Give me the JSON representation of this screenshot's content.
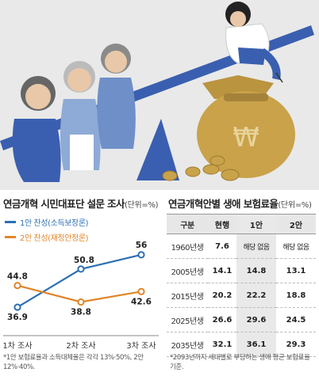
{
  "left_title": "연금개혁 시민대표단 설문 조사",
  "left_unit": "(단위=%)",
  "right_title": "연금개혁안별 생애 보험료율",
  "right_unit": "(단위=%)",
  "legend": [
    "1안 찬성(소득보장론)",
    "2안 찬성(재정안정론)"
  ],
  "colors": {
    "series1": "#2d6fb3",
    "series2": "#e0852a",
    "slope": "#3a5fb0",
    "gold": "#c9a24a",
    "bg": "#e9e9e9"
  },
  "chart_data": {
    "type": "line",
    "x": [
      "1차 조사",
      "2차 조사",
      "3차 조사"
    ],
    "series": [
      {
        "name": "1안 찬성(소득보장론)",
        "values": [
          36.9,
          50.8,
          56
        ]
      },
      {
        "name": "2안 찬성(재정안정론)",
        "values": [
          44.8,
          38.8,
          42.6
        ]
      }
    ],
    "value_labels": [
      [
        "36.9",
        "50.8",
        "56"
      ],
      [
        "44.8",
        "38.8",
        "42.6"
      ]
    ],
    "ylim": [
      30,
      60
    ],
    "grid": false,
    "legend_position": "top-left"
  },
  "table": {
    "headers": [
      "구분",
      "현행",
      "1안",
      "2안"
    ],
    "rows": [
      [
        "1960년생",
        "7.6",
        "해당 없음",
        "해당 없음"
      ],
      [
        "2005년생",
        "14.1",
        "14.8",
        "13.1"
      ],
      [
        "2015년생",
        "20.2",
        "22.2",
        "18.8"
      ],
      [
        "2025년생",
        "26.6",
        "29.6",
        "24.5"
      ],
      [
        "2035년생",
        "32.1",
        "36.1",
        "29.3"
      ]
    ]
  },
  "footnote_left": "*1안 보험료율과 소득대체율은 각각 13%·50%, 2안 12%·40%.",
  "footnote_right": "*2093년까지 세대별로 부담하는 생애 평균 보험료율 기준."
}
